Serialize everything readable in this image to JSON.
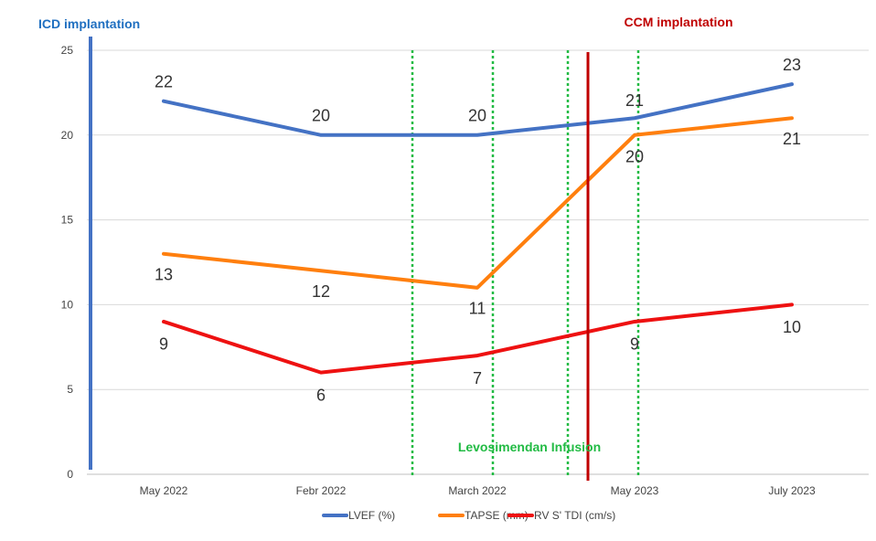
{
  "chart_data": {
    "type": "line",
    "categories": [
      "May 2022",
      "Febr 2022",
      "March 2022",
      "May 2023",
      "July 2023"
    ],
    "ylim": [
      0,
      25
    ],
    "yticks": [
      0,
      5,
      10,
      15,
      20,
      25
    ],
    "grid": true,
    "legend_position": "bottom",
    "series": [
      {
        "name": "LVEF (%)",
        "color": "#4472C4",
        "values": [
          22,
          20,
          20,
          21,
          23
        ]
      },
      {
        "name": "TAPSE (mm)",
        "color": "#FF7F0E",
        "values": [
          13,
          12,
          11,
          20,
          21
        ]
      },
      {
        "name": "RV S' TDI (cm/s)",
        "color": "#EE1111",
        "values": [
          9,
          6,
          7,
          9,
          10
        ]
      }
    ],
    "annotations": {
      "icd": {
        "text": "ICD implantation",
        "color": "#1F6FC0",
        "line_color": "#4472C4"
      },
      "ccm": {
        "text": "CCM implantation",
        "color": "#C00000",
        "line_color": "#C00000"
      },
      "levo": {
        "text": "Levosimendan Infusion",
        "color": "#22BB44",
        "line_color": "#22BB44"
      }
    }
  }
}
